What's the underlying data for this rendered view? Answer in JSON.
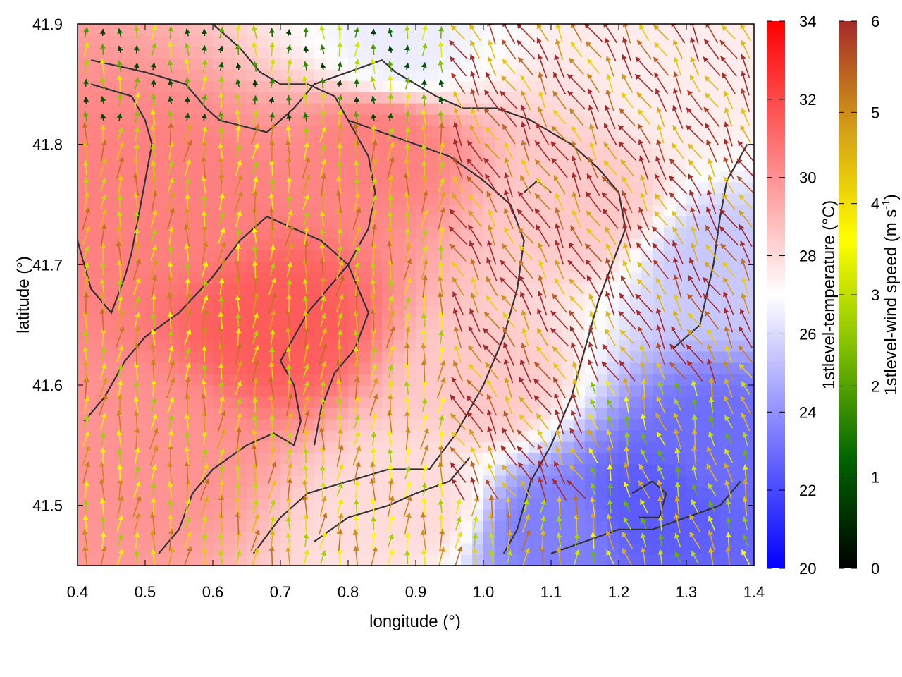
{
  "chart_data": {
    "type": "heatmap",
    "title": "",
    "xlabel": "longitude (°)",
    "ylabel": "latitude (°)",
    "xlim": [
      0.4,
      1.4
    ],
    "ylim": [
      41.45,
      41.9
    ],
    "x_ticks": [
      "0.4",
      "0.5",
      "0.6",
      "0.7",
      "0.8",
      "0.9",
      "1.0",
      "1.1",
      "1.2",
      "1.3",
      "1.4"
    ],
    "y_ticks": [
      "41.5",
      "41.6",
      "41.7",
      "41.8",
      "41.9"
    ],
    "temperature_colorbar": {
      "label": "1stlevel-temperature (°C)",
      "range": [
        20,
        34
      ],
      "ticks": [
        "20",
        "22",
        "24",
        "26",
        "28",
        "30",
        "32",
        "34"
      ],
      "colors": [
        "#0000ff",
        "#ffffff",
        "#ff0000"
      ],
      "neutral_value": 27
    },
    "wind_colorbar": {
      "label_main": "1stlevel-wind speed (m s",
      "label_sup": "-1",
      "label_end": ")",
      "range": [
        0,
        6
      ],
      "ticks": [
        "0",
        "1",
        "2",
        "3",
        "4",
        "5",
        "6"
      ],
      "colors": [
        "#000000",
        "#006400",
        "#7fbf00",
        "#ffff00",
        "#d4a017",
        "#a52a2a"
      ]
    },
    "temperature_field_description": [
      {
        "lon": 0.7,
        "lat": 41.65,
        "temp": 31.5
      },
      {
        "lon": 0.55,
        "lat": 41.75,
        "temp": 30.5
      },
      {
        "lon": 0.85,
        "lat": 41.8,
        "temp": 30.5
      },
      {
        "lon": 0.5,
        "lat": 41.55,
        "temp": 30.0
      },
      {
        "lon": 1.0,
        "lat": 41.6,
        "temp": 28.5
      },
      {
        "lon": 1.15,
        "lat": 41.75,
        "temp": 28.5
      },
      {
        "lon": 1.3,
        "lat": 41.85,
        "temp": 27.5
      },
      {
        "lon": 1.25,
        "lat": 41.5,
        "temp": 22.5
      },
      {
        "lon": 1.35,
        "lat": 41.55,
        "temp": 23.0
      },
      {
        "lon": 1.1,
        "lat": 41.48,
        "temp": 23.5
      },
      {
        "lon": 1.35,
        "lat": 41.7,
        "temp": 25.5
      },
      {
        "lon": 0.88,
        "lat": 41.88,
        "temp": 26.5
      },
      {
        "lon": 0.9,
        "lat": 41.5,
        "temp": 28.0
      }
    ],
    "wind_field_description": {
      "west_region": {
        "lon_max": 0.8,
        "u": 0.1,
        "v": 1.0,
        "speed": 4.0
      },
      "central_northeast": {
        "lon_min": 0.95,
        "lat_min": 41.55,
        "u": -0.5,
        "v": 0.85,
        "speed": 5.5
      },
      "southeast_sea": {
        "lon_min": 1.15,
        "lat_max": 41.6,
        "u": -0.3,
        "v": 0.95,
        "speed": 3.5
      },
      "calm_north": {
        "lat_min": 41.82,
        "lon_max": 0.95,
        "speed": 2.0
      }
    },
    "contours": [
      [
        [
          0.42,
          41.87
        ],
        [
          0.5,
          41.86
        ],
        [
          0.56,
          41.85
        ],
        [
          0.59,
          41.83
        ],
        [
          0.61,
          41.82
        ],
        [
          0.68,
          41.81
        ],
        [
          0.72,
          41.83
        ],
        [
          0.75,
          41.85
        ],
        [
          0.8,
          41.86
        ],
        [
          0.85,
          41.87
        ],
        [
          0.87,
          41.86
        ],
        [
          0.9,
          41.85
        ],
        [
          0.93,
          41.84
        ],
        [
          0.97,
          41.83
        ],
        [
          1.02,
          41.83
        ],
        [
          1.07,
          41.82
        ],
        [
          1.1,
          41.81
        ],
        [
          1.13,
          41.8
        ],
        [
          1.17,
          41.78
        ],
        [
          1.2,
          41.76
        ],
        [
          1.21,
          41.73
        ],
        [
          1.19,
          41.7
        ],
        [
          1.17,
          41.67
        ],
        [
          1.15,
          41.63
        ],
        [
          1.13,
          41.59
        ],
        [
          1.1,
          41.55
        ],
        [
          1.07,
          41.52
        ],
        [
          1.05,
          41.48
        ],
        [
          1.03,
          41.46
        ]
      ],
      [
        [
          0.42,
          41.85
        ],
        [
          0.48,
          41.84
        ],
        [
          0.5,
          41.82
        ],
        [
          0.51,
          41.8
        ],
        [
          0.5,
          41.77
        ],
        [
          0.49,
          41.74
        ],
        [
          0.48,
          41.71
        ],
        [
          0.47,
          41.69
        ],
        [
          0.45,
          41.66
        ],
        [
          0.42,
          41.68
        ],
        [
          0.4,
          41.72
        ]
      ],
      [
        [
          0.52,
          41.46
        ],
        [
          0.55,
          41.48
        ],
        [
          0.57,
          41.51
        ],
        [
          0.6,
          41.53
        ],
        [
          0.65,
          41.55
        ],
        [
          0.69,
          41.56
        ],
        [
          0.72,
          41.55
        ],
        [
          0.73,
          41.57
        ],
        [
          0.72,
          41.6
        ],
        [
          0.7,
          41.62
        ],
        [
          0.74,
          41.66
        ],
        [
          0.8,
          41.7
        ],
        [
          0.83,
          41.73
        ],
        [
          0.84,
          41.76
        ],
        [
          0.83,
          41.79
        ],
        [
          0.8,
          41.82
        ],
        [
          0.78,
          41.84
        ],
        [
          0.74,
          41.85
        ],
        [
          0.7,
          41.85
        ],
        [
          0.67,
          41.86
        ],
        [
          0.64,
          41.88
        ],
        [
          0.6,
          41.9
        ]
      ],
      [
        [
          0.66,
          41.46
        ],
        [
          0.7,
          41.49
        ],
        [
          0.74,
          41.51
        ],
        [
          0.8,
          41.52
        ],
        [
          0.86,
          41.53
        ],
        [
          0.92,
          41.53
        ],
        [
          0.96,
          41.56
        ],
        [
          1.0,
          41.6
        ],
        [
          1.03,
          41.64
        ],
        [
          1.05,
          41.68
        ],
        [
          1.06,
          41.72
        ],
        [
          1.04,
          41.75
        ],
        [
          1.0,
          41.77
        ],
        [
          0.95,
          41.79
        ],
        [
          0.9,
          41.8
        ],
        [
          0.85,
          41.81
        ],
        [
          0.8,
          41.82
        ]
      ],
      [
        [
          0.75,
          41.47
        ],
        [
          0.8,
          41.49
        ],
        [
          0.86,
          41.5
        ],
        [
          0.9,
          41.51
        ],
        [
          0.95,
          41.52
        ],
        [
          0.98,
          41.54
        ]
      ],
      [
        [
          0.41,
          41.57
        ],
        [
          0.44,
          41.59
        ],
        [
          0.47,
          41.62
        ],
        [
          0.5,
          41.64
        ],
        [
          0.55,
          41.66
        ],
        [
          0.6,
          41.69
        ],
        [
          0.64,
          41.72
        ],
        [
          0.68,
          41.74
        ],
        [
          0.72,
          41.73
        ],
        [
          0.76,
          41.72
        ],
        [
          0.8,
          41.7
        ],
        [
          0.83,
          41.66
        ],
        [
          0.81,
          41.63
        ],
        [
          0.78,
          41.61
        ],
        [
          0.76,
          41.58
        ],
        [
          0.75,
          41.55
        ]
      ],
      [
        [
          1.1,
          41.46
        ],
        [
          1.15,
          41.47
        ],
        [
          1.2,
          41.48
        ],
        [
          1.25,
          41.48
        ],
        [
          1.3,
          41.49
        ],
        [
          1.35,
          41.5
        ],
        [
          1.38,
          41.52
        ]
      ],
      [
        [
          1.28,
          41.63
        ],
        [
          1.32,
          41.65
        ],
        [
          1.34,
          41.7
        ],
        [
          1.35,
          41.74
        ],
        [
          1.36,
          41.77
        ],
        [
          1.39,
          41.8
        ]
      ],
      [
        [
          1.22,
          41.51
        ],
        [
          1.25,
          41.52
        ],
        [
          1.27,
          41.51
        ],
        [
          1.26,
          41.49
        ],
        [
          1.23,
          41.49
        ]
      ],
      [
        [
          1.06,
          41.76
        ],
        [
          1.08,
          41.77
        ],
        [
          1.1,
          41.76
        ]
      ]
    ]
  }
}
